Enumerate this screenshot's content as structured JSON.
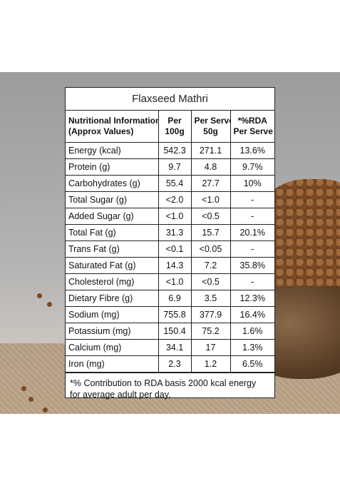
{
  "title": "Flaxseed Mathri",
  "headers": {
    "h1a": "Nutritional Information",
    "h1b": "(Approx Values)",
    "h2a": "Per",
    "h2b": "100g",
    "h3a": "Per Serve",
    "h3b": "50g",
    "h4a": "*%RDA",
    "h4b": "Per Serve"
  },
  "rows": [
    {
      "label": "Energy (kcal)",
      "per100": "542.3",
      "perServe": "271.1",
      "rda": "13.6%"
    },
    {
      "label": "Protein (g)",
      "per100": "9.7",
      "perServe": "4.8",
      "rda": "9.7%"
    },
    {
      "label": "Carbohydrates (g)",
      "per100": "55.4",
      "perServe": "27.7",
      "rda": "10%"
    },
    {
      "label": "Total Sugar (g)",
      "per100": "<2.0",
      "perServe": "<1.0",
      "rda": "-"
    },
    {
      "label": "Added Sugar (g)",
      "per100": "<1.0",
      "perServe": "<0.5",
      "rda": "-"
    },
    {
      "label": "Total Fat (g)",
      "per100": "31.3",
      "perServe": "15.7",
      "rda": "20.1%"
    },
    {
      "label": "Trans Fat (g)",
      "per100": "<0.1",
      "perServe": "<0.05",
      "rda": "-"
    },
    {
      "label": "Saturated Fat (g)",
      "per100": "14.3",
      "perServe": "7.2",
      "rda": "35.8%"
    },
    {
      "label": "Cholesterol (mg)",
      "per100": "<1.0",
      "perServe": "<0.5",
      "rda": "-"
    },
    {
      "label": "Dietary Fibre (g)",
      "per100": "6.9",
      "perServe": "3.5",
      "rda": "12.3%"
    },
    {
      "label": "Sodium (mg)",
      "per100": "755.8",
      "perServe": "377.9",
      "rda": "16.4%"
    },
    {
      "label": "Potassium (mg)",
      "per100": "150.4",
      "perServe": "75.2",
      "rda": "1.6%"
    },
    {
      "label": "Calcium (mg)",
      "per100": "34.1",
      "perServe": "17",
      "rda": "1.3%"
    },
    {
      "label": "Iron (mg)",
      "per100": "2.3",
      "perServe": "1.2",
      "rda": "6.5%"
    }
  ],
  "footnote": {
    "line1": "*% Contribution to RDA basis 2000 kcal energy",
    "line2": "for average adult per day."
  }
}
